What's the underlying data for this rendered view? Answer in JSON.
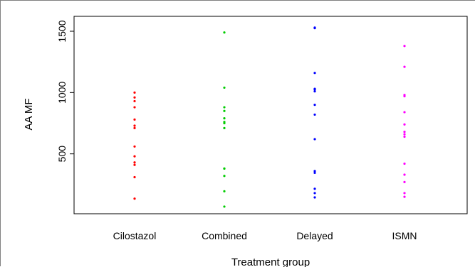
{
  "chart_data": {
    "type": "scatter",
    "title": "",
    "xlabel": "Treatment group",
    "ylabel": "AA MF",
    "ylim": [
      0,
      1600
    ],
    "yticks": [
      500,
      1000,
      1500
    ],
    "grid": false,
    "categories": [
      "Cilostazol",
      "Combined",
      "Delayed",
      "ISMN"
    ],
    "series": [
      {
        "category": "Cilostazol",
        "color": "#ff0000",
        "values": [
          1000,
          960,
          930,
          880,
          780,
          730,
          710,
          560,
          480,
          430,
          410,
          310,
          135
        ]
      },
      {
        "category": "Combined",
        "color": "#00cc00",
        "values": [
          1490,
          1040,
          880,
          850,
          790,
          760,
          750,
          710,
          380,
          380,
          320,
          195,
          70
        ]
      },
      {
        "category": "Delayed",
        "color": "#0000ff",
        "values": [
          1530,
          1525,
          1160,
          1030,
          1025,
          1010,
          900,
          820,
          620,
          360,
          345,
          215,
          180,
          145
        ]
      },
      {
        "category": "ISMN",
        "color": "#ff00ff",
        "values": [
          1380,
          1210,
          980,
          970,
          840,
          740,
          680,
          660,
          640,
          420,
          330,
          270,
          180,
          150
        ]
      }
    ]
  }
}
